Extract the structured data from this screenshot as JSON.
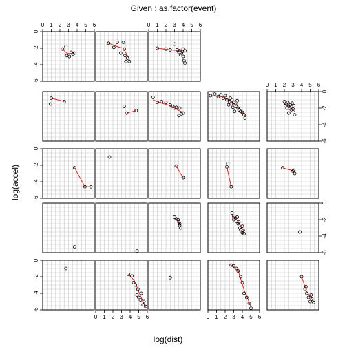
{
  "chart_data": {
    "type": "scatter",
    "title": "Given : as.factor(event)",
    "xlabel": "log(dist)",
    "ylabel": "log(accel)",
    "xlim": [
      0,
      6
    ],
    "ylim": [
      -6,
      0
    ],
    "x_ticks": [
      0,
      1,
      2,
      3,
      4,
      5,
      6
    ],
    "y_ticks": [
      0,
      -2,
      -4,
      -6
    ],
    "x_tick_labels": [
      "0",
      "1",
      "2",
      "3",
      "4",
      "5",
      "6"
    ],
    "y_tick_labels": [
      "0",
      "-2",
      "-4",
      "-6"
    ],
    "grid": true,
    "smoother_color": "#e8201f",
    "point_color": "#000000",
    "panels": [
      {
        "row": 0,
        "col": 0,
        "points": [
          [
            2.3,
            -2.1
          ],
          [
            2.7,
            -1.8
          ],
          [
            2.8,
            -2.9
          ],
          [
            3.1,
            -3.0
          ],
          [
            3.3,
            -2.5
          ],
          [
            3.5,
            -2.7
          ],
          [
            3.7,
            -2.6
          ]
        ],
        "smooth": [
          [
            2.3,
            -2.1
          ],
          [
            2.8,
            -2.6
          ],
          [
            3.3,
            -2.7
          ],
          [
            3.7,
            -2.6
          ]
        ]
      },
      {
        "row": 0,
        "col": 1,
        "points": [
          [
            1.5,
            -1.4
          ],
          [
            2.5,
            -1.3
          ],
          [
            2.9,
            -2.6
          ],
          [
            3.2,
            -1.3
          ],
          [
            3.4,
            -2.9
          ],
          [
            3.5,
            -3.6
          ],
          [
            3.7,
            -3.2
          ],
          [
            3.9,
            -3.6
          ],
          [
            2.1,
            -1.9
          ],
          [
            3.3,
            -2.1
          ]
        ],
        "smooth": [
          [
            1.5,
            -1.4
          ],
          [
            2.5,
            -1.8
          ],
          [
            3.2,
            -2.0
          ],
          [
            3.9,
            -3.3
          ]
        ]
      },
      {
        "row": 0,
        "col": 2,
        "points": [
          [
            1.0,
            -2.0
          ],
          [
            2.0,
            -2.1
          ],
          [
            2.5,
            -2.2
          ],
          [
            3.0,
            -1.5
          ],
          [
            3.3,
            -2.2
          ],
          [
            3.5,
            -2.5
          ],
          [
            3.8,
            -2.6
          ],
          [
            3.9,
            -2.4
          ],
          [
            4.0,
            -3.0
          ],
          [
            4.1,
            -3.5
          ],
          [
            4.2,
            -3.8
          ],
          [
            4.2,
            -2.3
          ],
          [
            3.7,
            -2.8
          ],
          [
            4.0,
            -2.1
          ],
          [
            3.6,
            -2.3
          ]
        ],
        "smooth": [
          [
            1.0,
            -2.0
          ],
          [
            2.5,
            -2.2
          ],
          [
            3.5,
            -2.3
          ],
          [
            4.2,
            -2.5
          ]
        ]
      },
      {
        "row": 1,
        "col": 0,
        "points": [
          [
            1.0,
            -0.8
          ],
          [
            2.5,
            -1.2
          ],
          [
            0.9,
            -1.5
          ]
        ],
        "smooth": [
          [
            1.0,
            -0.8
          ],
          [
            2.5,
            -1.2
          ]
        ]
      },
      {
        "row": 1,
        "col": 1,
        "points": [
          [
            3.3,
            -1.8
          ],
          [
            3.6,
            -2.6
          ],
          [
            4.7,
            -2.3
          ]
        ],
        "smooth": [
          [
            3.6,
            -2.6
          ],
          [
            4.7,
            -2.3
          ]
        ]
      },
      {
        "row": 1,
        "col": 2,
        "points": [
          [
            0.5,
            -0.7
          ],
          [
            1.0,
            -1.3
          ],
          [
            1.5,
            -1.2
          ],
          [
            2.0,
            -1.3
          ],
          [
            2.5,
            -1.6
          ],
          [
            2.8,
            -1.8
          ],
          [
            3.0,
            -2.0
          ],
          [
            3.2,
            -1.9
          ],
          [
            3.6,
            -2.0
          ],
          [
            3.8,
            -2.7
          ],
          [
            4.0,
            -2.6
          ],
          [
            3.5,
            -2.9
          ]
        ],
        "smooth": [
          [
            0.5,
            -1.0
          ],
          [
            1.5,
            -1.4
          ],
          [
            2.5,
            -1.7
          ],
          [
            3.5,
            -2.3
          ],
          [
            4.0,
            -2.5
          ]
        ]
      },
      {
        "row": 1,
        "col": 3,
        "points": [
          [
            0.3,
            -0.5
          ],
          [
            0.8,
            -0.3
          ],
          [
            1.2,
            -0.6
          ],
          [
            1.5,
            -0.4
          ],
          [
            1.8,
            -0.8
          ],
          [
            2.0,
            -0.5
          ],
          [
            2.2,
            -1.0
          ],
          [
            2.5,
            -1.2
          ],
          [
            2.7,
            -1.5
          ],
          [
            2.8,
            -1.0
          ],
          [
            3.0,
            -1.3
          ],
          [
            3.2,
            -1.5
          ],
          [
            3.3,
            -1.8
          ],
          [
            3.5,
            -2.0
          ],
          [
            3.6,
            -2.2
          ],
          [
            3.8,
            -2.4
          ],
          [
            4.0,
            -2.5
          ],
          [
            4.2,
            -2.8
          ],
          [
            4.3,
            -3.2
          ],
          [
            2.4,
            -1.6
          ],
          [
            2.9,
            -1.9
          ],
          [
            3.1,
            -2.4
          ],
          [
            2.6,
            -0.8
          ],
          [
            3.4,
            -1.1
          ]
        ],
        "smooth": [
          [
            0.3,
            -0.5
          ],
          [
            1.5,
            -0.6
          ],
          [
            2.5,
            -1.1
          ],
          [
            3.3,
            -1.6
          ],
          [
            4.3,
            -2.9
          ]
        ]
      },
      {
        "row": 1,
        "col": 4,
        "points": [
          [
            2.0,
            -1.2
          ],
          [
            2.2,
            -1.5
          ],
          [
            2.4,
            -1.3
          ],
          [
            2.5,
            -1.8
          ],
          [
            2.6,
            -2.0
          ],
          [
            2.7,
            -1.6
          ],
          [
            2.8,
            -2.2
          ],
          [
            3.0,
            -2.1
          ],
          [
            3.2,
            -2.8
          ],
          [
            2.3,
            -2.0
          ],
          [
            2.9,
            -1.4
          ],
          [
            3.1,
            -1.7
          ],
          [
            2.5,
            -2.6
          ],
          [
            2.1,
            -1.7
          ]
        ],
        "smooth": [
          [
            2.0,
            -1.4
          ],
          [
            2.6,
            -1.8
          ],
          [
            3.2,
            -2.4
          ]
        ]
      },
      {
        "row": 2,
        "col": 0,
        "points": [
          [
            3.7,
            -2.3
          ],
          [
            4.9,
            -4.6
          ],
          [
            5.6,
            -4.6
          ]
        ],
        "smooth": [
          [
            3.7,
            -2.3
          ],
          [
            4.9,
            -4.6
          ],
          [
            5.6,
            -4.6
          ]
        ]
      },
      {
        "row": 2,
        "col": 1,
        "points": [
          [
            1.6,
            -1.0
          ]
        ],
        "smooth": []
      },
      {
        "row": 2,
        "col": 2,
        "points": [
          [
            3.2,
            -2.1
          ],
          [
            4.0,
            -3.5
          ]
        ],
        "smooth": [
          [
            3.2,
            -2.1
          ],
          [
            4.0,
            -3.5
          ]
        ]
      },
      {
        "row": 2,
        "col": 3,
        "points": [
          [
            2.2,
            -2.2
          ],
          [
            2.3,
            -1.8
          ],
          [
            2.7,
            -4.6
          ]
        ],
        "smooth": [
          [
            2.2,
            -2.2
          ],
          [
            2.7,
            -4.6
          ]
        ]
      },
      {
        "row": 2,
        "col": 4,
        "points": [
          [
            1.8,
            -2.3
          ],
          [
            3.1,
            -2.6
          ],
          [
            3.2,
            -3.0
          ],
          [
            3.0,
            -2.7
          ]
        ],
        "smooth": [
          [
            1.8,
            -2.3
          ],
          [
            3.1,
            -2.7
          ]
        ]
      },
      {
        "row": 3,
        "col": 0,
        "points": [
          [
            3.7,
            -5.3
          ]
        ],
        "smooth": []
      },
      {
        "row": 3,
        "col": 1,
        "points": [
          [
            4.8,
            -5.8
          ]
        ],
        "smooth": []
      },
      {
        "row": 3,
        "col": 2,
        "points": [
          [
            3.0,
            -1.7
          ],
          [
            3.2,
            -1.9
          ],
          [
            3.5,
            -2.3
          ],
          [
            3.6,
            -2.5
          ],
          [
            3.7,
            -3.0
          ],
          [
            3.4,
            -2.0
          ],
          [
            3.6,
            -2.7
          ]
        ],
        "smooth": [
          [
            3.0,
            -1.8
          ],
          [
            3.5,
            -2.3
          ],
          [
            3.7,
            -2.9
          ]
        ]
      },
      {
        "row": 3,
        "col": 3,
        "points": [
          [
            2.8,
            -1.2
          ],
          [
            3.0,
            -1.6
          ],
          [
            3.2,
            -1.8
          ],
          [
            3.3,
            -2.2
          ],
          [
            3.5,
            -2.5
          ],
          [
            3.6,
            -2.3
          ],
          [
            3.7,
            -3.0
          ],
          [
            3.8,
            -3.2
          ],
          [
            3.9,
            -3.5
          ],
          [
            4.0,
            -2.8
          ],
          [
            4.1,
            -3.3
          ],
          [
            4.2,
            -3.7
          ],
          [
            3.4,
            -1.7
          ],
          [
            3.0,
            -2.0
          ],
          [
            4.0,
            -3.6
          ]
        ],
        "smooth": [
          [
            2.8,
            -1.4
          ],
          [
            3.4,
            -2.1
          ],
          [
            4.2,
            -3.4
          ]
        ]
      },
      {
        "row": 3,
        "col": 4,
        "points": [
          [
            3.8,
            -3.5
          ]
        ],
        "smooth": []
      },
      {
        "row": 4,
        "col": 0,
        "points": [
          [
            2.7,
            -1.0
          ]
        ],
        "smooth": []
      },
      {
        "row": 4,
        "col": 1,
        "points": [
          [
            3.8,
            -1.7
          ],
          [
            4.2,
            -1.9
          ],
          [
            4.4,
            -2.7
          ],
          [
            4.6,
            -3.0
          ],
          [
            4.8,
            -4.2
          ],
          [
            5.0,
            -4.5
          ],
          [
            5.2,
            -4.8
          ],
          [
            5.5,
            -5.4
          ],
          [
            5.8,
            -5.6
          ],
          [
            4.9,
            -3.5
          ],
          [
            5.3,
            -4.0
          ],
          [
            5.6,
            -5.0
          ]
        ],
        "smooth": [
          [
            3.8,
            -1.7
          ],
          [
            4.5,
            -2.5
          ],
          [
            5.2,
            -4.3
          ],
          [
            5.8,
            -5.7
          ]
        ]
      },
      {
        "row": 4,
        "col": 2,
        "points": [
          [
            2.5,
            -2.1
          ]
        ],
        "smooth": []
      },
      {
        "row": 4,
        "col": 3,
        "points": [
          [
            2.7,
            -0.6
          ],
          [
            3.0,
            -0.7
          ],
          [
            3.3,
            -1.0
          ],
          [
            3.8,
            -2.0
          ],
          [
            4.0,
            -2.7
          ],
          [
            4.2,
            -4.0
          ],
          [
            4.5,
            -4.5
          ],
          [
            4.8,
            -5.2
          ],
          [
            5.0,
            -5.8
          ],
          [
            3.5,
            -1.3
          ]
        ],
        "smooth": [
          [
            2.7,
            -0.6
          ],
          [
            3.5,
            -1.2
          ],
          [
            4.2,
            -3.6
          ],
          [
            5.0,
            -5.6
          ]
        ]
      },
      {
        "row": 4,
        "col": 4,
        "points": [
          [
            4.0,
            -2.0
          ],
          [
            4.4,
            -3.5
          ],
          [
            4.6,
            -4.0
          ],
          [
            4.8,
            -4.5
          ],
          [
            5.0,
            -5.0
          ],
          [
            5.2,
            -4.7
          ],
          [
            5.4,
            -5.1
          ],
          [
            5.1,
            -4.2
          ],
          [
            4.5,
            -3.2
          ]
        ],
        "smooth": [
          [
            4.0,
            -2.0
          ],
          [
            4.6,
            -3.8
          ],
          [
            5.4,
            -5.0
          ]
        ]
      }
    ]
  }
}
